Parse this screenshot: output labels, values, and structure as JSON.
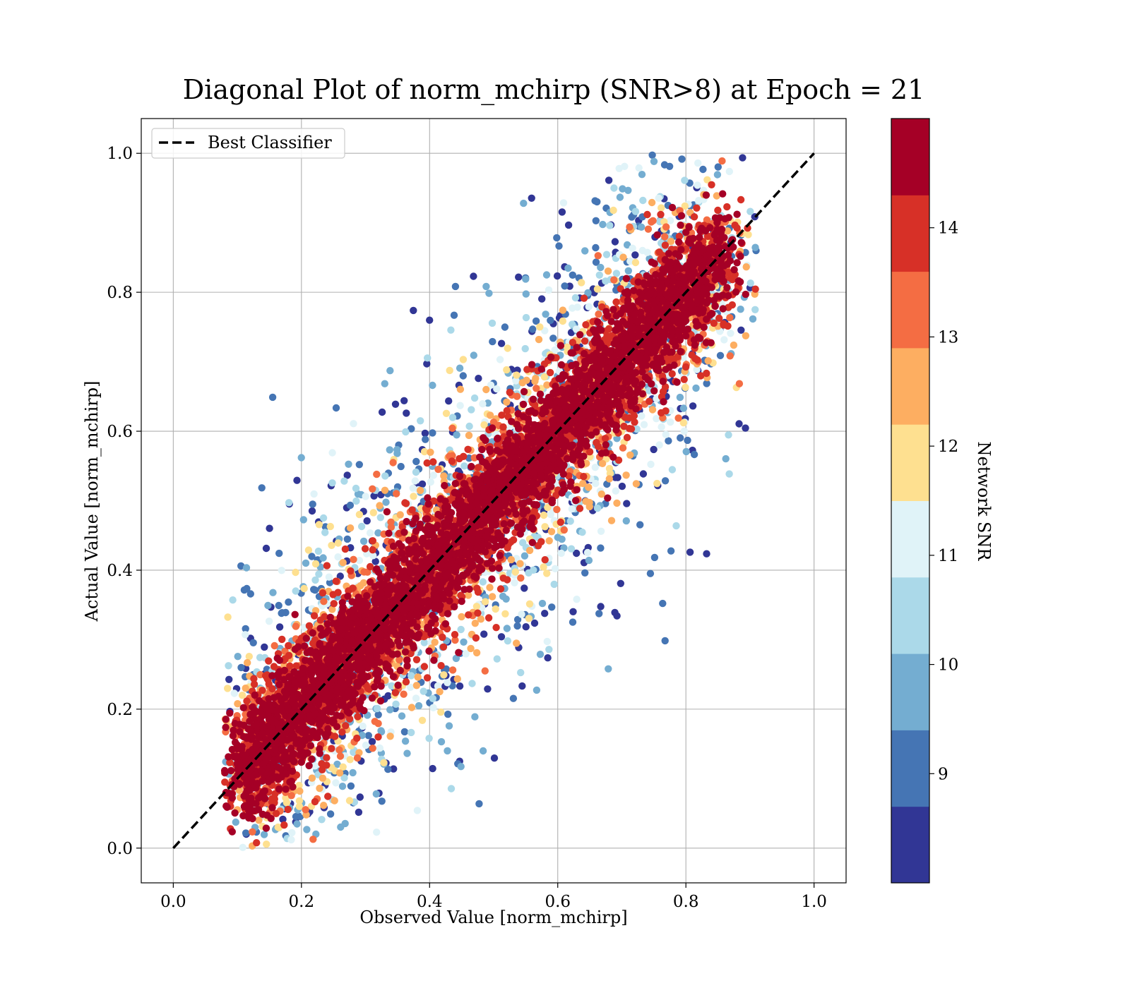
{
  "chart_data": {
    "type": "scatter",
    "title": "Diagonal Plot of norm_mchirp (SNR>8) at Epoch = 21",
    "xlabel": "Observed Value [norm_mchirp]",
    "ylabel": "Actual Value [norm_mchirp]",
    "xlim": [
      -0.05,
      1.05
    ],
    "ylim": [
      -0.05,
      1.05
    ],
    "xticks": [
      "0.0",
      "0.2",
      "0.4",
      "0.6",
      "0.8",
      "1.0"
    ],
    "yticks": [
      "0.0",
      "0.2",
      "0.4",
      "0.6",
      "0.8",
      "1.0"
    ],
    "grid": true,
    "legend": {
      "position": "top-left",
      "entries": [
        {
          "label": "Best Classifier",
          "style": "dashed",
          "color": "#000000"
        }
      ]
    },
    "reference_line": {
      "name": "Best Classifier",
      "x": [
        0.0,
        1.0
      ],
      "y": [
        0.0,
        1.0
      ]
    },
    "colorbar": {
      "label": "Network SNR",
      "range": [
        8,
        15
      ],
      "ticks": [
        "9",
        "10",
        "11",
        "12",
        "13",
        "14"
      ],
      "colors": [
        "#313695",
        "#4575b4",
        "#74add1",
        "#abd9e9",
        "#e0f3f8",
        "#fee090",
        "#fdae61",
        "#f46d43",
        "#d73027",
        "#a50026"
      ]
    },
    "scatter_summary": {
      "x_range": [
        0.08,
        0.91
      ],
      "y_range": [
        0.0,
        1.0
      ],
      "note_visible": "points cluster along the diagonal"
    }
  }
}
